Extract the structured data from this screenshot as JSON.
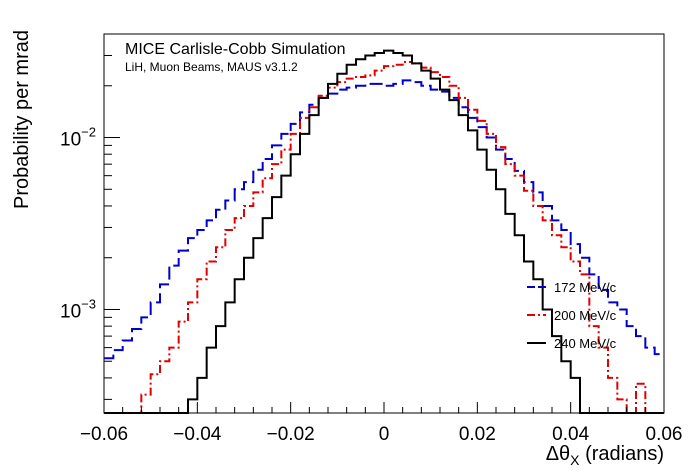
{
  "chart_data": {
    "type": "line",
    "title": "MICE Carlisle-Cobb Simulation",
    "subtitle": "LiH, Muon Beams, MAUS v3.1.2",
    "xlabel": "Δθ",
    "xlabel_sub": "X",
    "xlabel_unit": " (radians)",
    "ylabel": "Probability per mrad",
    "xlim": [
      -0.06,
      0.06
    ],
    "ylim": [
      0.00025,
      0.04
    ],
    "yscale": "log",
    "grid": false,
    "legend_position": "bottom-right",
    "x_ticks": [
      {
        "value": -0.06,
        "label": "−0.06"
      },
      {
        "value": -0.04,
        "label": "−0.04"
      },
      {
        "value": -0.02,
        "label": "−0.02"
      },
      {
        "value": 0,
        "label": "0"
      },
      {
        "value": 0.02,
        "label": "0.02"
      },
      {
        "value": 0.04,
        "label": "0.04"
      },
      {
        "value": 0.06,
        "label": "0.06"
      }
    ],
    "y_ticks": [
      {
        "value": 0.01,
        "base": "10",
        "exp": "−2"
      },
      {
        "value": 0.001,
        "base": "10",
        "exp": "−3"
      }
    ],
    "bin_edges": [
      -0.06,
      -0.058,
      -0.056,
      -0.054,
      -0.052,
      -0.05,
      -0.048,
      -0.046,
      -0.044,
      -0.042,
      -0.04,
      -0.038,
      -0.036,
      -0.034,
      -0.032,
      -0.03,
      -0.028,
      -0.026,
      -0.024,
      -0.022,
      -0.02,
      -0.018,
      -0.016,
      -0.014,
      -0.012,
      -0.01,
      -0.008,
      -0.006,
      -0.004,
      -0.002,
      0,
      0.002,
      0.004,
      0.006,
      0.008,
      0.01,
      0.012,
      0.014,
      0.016,
      0.018,
      0.02,
      0.022,
      0.024,
      0.026,
      0.028,
      0.03,
      0.032,
      0.034,
      0.036,
      0.038,
      0.04,
      0.042,
      0.044,
      0.046,
      0.048,
      0.05,
      0.052,
      0.054,
      0.056,
      0.058,
      0.06
    ],
    "series": [
      {
        "name": "172 MeV/c",
        "color": "#0000cc",
        "dash": "13,5",
        "values": [
          0.00052,
          0.00058,
          0.00066,
          0.00077,
          0.0009,
          0.0011,
          0.0014,
          0.0018,
          0.0022,
          0.0026,
          0.0029,
          0.0033,
          0.0038,
          0.0043,
          0.005,
          0.0055,
          0.0065,
          0.0075,
          0.009,
          0.0105,
          0.012,
          0.014,
          0.0155,
          0.017,
          0.018,
          0.019,
          0.0195,
          0.02,
          0.0205,
          0.0205,
          0.02,
          0.0205,
          0.0215,
          0.021,
          0.02,
          0.019,
          0.0185,
          0.017,
          0.015,
          0.013,
          0.0115,
          0.01,
          0.0085,
          0.0075,
          0.0064,
          0.0055,
          0.0048,
          0.004,
          0.0033,
          0.0029,
          0.0024,
          0.002,
          0.0016,
          0.0013,
          0.0011,
          0.001,
          0.0008,
          0.0007,
          0.0006,
          0.00055
        ]
      },
      {
        "name": "200 MeV/c",
        "color": "#e00000",
        "dash": "8,3,2,3",
        "values": [
          0.0,
          0.0,
          0.0,
          0.00023,
          0.00032,
          0.00042,
          0.0005,
          0.0006,
          0.00085,
          0.0011,
          0.0015,
          0.0019,
          0.0023,
          0.0029,
          0.0034,
          0.004,
          0.0048,
          0.0058,
          0.007,
          0.0085,
          0.0105,
          0.013,
          0.015,
          0.0175,
          0.0195,
          0.021,
          0.022,
          0.0225,
          0.023,
          0.0245,
          0.026,
          0.0265,
          0.0275,
          0.027,
          0.0255,
          0.024,
          0.0225,
          0.02,
          0.017,
          0.0145,
          0.0125,
          0.0105,
          0.0088,
          0.007,
          0.006,
          0.0049,
          0.004,
          0.0033,
          0.0027,
          0.0023,
          0.0019,
          0.0016,
          0.0008,
          0.0006,
          0.0004,
          0.0003,
          0.00025,
          0.00037,
          0.0002,
          0.0
        ]
      },
      {
        "name": "240 MeV/c",
        "color": "#000000",
        "dash": "",
        "values": [
          0.0,
          0.0,
          0.0,
          0.0,
          0.0,
          0.0,
          0.0,
          0.00022,
          0.00025,
          0.0003,
          0.0004,
          0.0006,
          0.0008,
          0.0011,
          0.0015,
          0.002,
          0.0026,
          0.0034,
          0.0045,
          0.006,
          0.008,
          0.0105,
          0.0135,
          0.017,
          0.0205,
          0.0235,
          0.0265,
          0.0285,
          0.03,
          0.031,
          0.032,
          0.031,
          0.03,
          0.027,
          0.0245,
          0.022,
          0.019,
          0.0165,
          0.0135,
          0.011,
          0.0085,
          0.0065,
          0.005,
          0.0036,
          0.0027,
          0.0019,
          0.0015,
          0.001,
          0.0007,
          0.0005,
          0.0004,
          0.00025,
          0.0,
          0.0,
          0.0,
          0.0,
          0.0,
          0.0,
          0.0,
          0.0
        ]
      }
    ]
  }
}
